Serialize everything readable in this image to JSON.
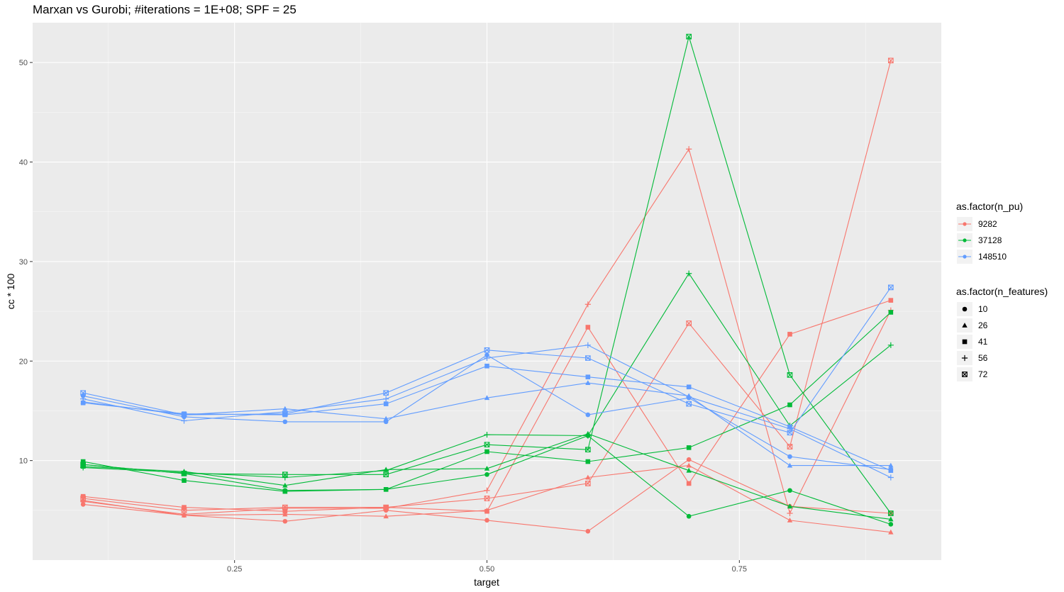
{
  "chart_data": {
    "type": "line",
    "title": "Marxan vs Gurobi; #iterations = 1E+08; SPF = 25",
    "xlabel": "target",
    "ylabel": "cc * 100",
    "xlim": [
      0.05,
      0.95
    ],
    "ylim": [
      0,
      54
    ],
    "x_ticks": [
      0.25,
      0.5,
      0.75
    ],
    "x_tick_labels": [
      "0.25",
      "0.50",
      "0.75"
    ],
    "y_ticks": [
      10,
      20,
      30,
      40,
      50
    ],
    "y_tick_labels": [
      "10",
      "20",
      "30",
      "40",
      "50"
    ],
    "grid": true,
    "legend_position": "right",
    "x": [
      0.1,
      0.2,
      0.3,
      0.4,
      0.5,
      0.6,
      0.7,
      0.8,
      0.9
    ],
    "color_legend": {
      "title": "as.factor(n_pu)",
      "entries": [
        {
          "label": "9282",
          "color": "#F8766D"
        },
        {
          "label": "37128",
          "color": "#00BA38"
        },
        {
          "label": "148510",
          "color": "#619CFF"
        }
      ]
    },
    "shape_legend": {
      "title": "as.factor(n_features)",
      "entries": [
        {
          "label": "10",
          "shape": "circle"
        },
        {
          "label": "26",
          "shape": "triangle"
        },
        {
          "label": "41",
          "shape": "square"
        },
        {
          "label": "56",
          "shape": "plus"
        },
        {
          "label": "72",
          "shape": "square-x"
        }
      ]
    },
    "series": [
      {
        "n_pu": "9282",
        "n_features": "10",
        "values": [
          5.6,
          4.5,
          3.9,
          5.0,
          4.0,
          2.9,
          10.1,
          5.4,
          4.7
        ]
      },
      {
        "n_pu": "9282",
        "n_features": "26",
        "values": [
          6.0,
          4.5,
          4.6,
          4.4,
          5.0,
          8.3,
          9.5,
          4.0,
          2.8
        ]
      },
      {
        "n_pu": "9282",
        "n_features": "41",
        "values": [
          6.4,
          5.3,
          4.9,
          5.3,
          4.9,
          23.4,
          7.7,
          22.7,
          26.1
        ]
      },
      {
        "n_pu": "9282",
        "n_features": "56",
        "values": [
          5.9,
          4.6,
          5.2,
          5.2,
          7.0,
          25.7,
          41.3,
          4.7,
          25.1
        ]
      },
      {
        "n_pu": "9282",
        "n_features": "72",
        "values": [
          6.2,
          5.0,
          5.3,
          5.3,
          6.2,
          7.7,
          23.8,
          11.4,
          50.2
        ]
      },
      {
        "n_pu": "37128",
        "n_features": "10",
        "values": [
          9.6,
          8.7,
          7.0,
          7.1,
          8.6,
          12.5,
          4.4,
          7.0,
          3.6
        ]
      },
      {
        "n_pu": "37128",
        "n_features": "26",
        "values": [
          9.4,
          8.9,
          7.5,
          9.1,
          9.2,
          12.7,
          9.0,
          5.4,
          4.1
        ]
      },
      {
        "n_pu": "37128",
        "n_features": "41",
        "values": [
          9.9,
          8.0,
          6.9,
          7.1,
          10.9,
          9.9,
          11.3,
          15.6,
          24.9
        ]
      },
      {
        "n_pu": "37128",
        "n_features": "56",
        "values": [
          9.3,
          8.8,
          8.3,
          9.0,
          12.6,
          12.5,
          28.8,
          13.5,
          21.6
        ]
      },
      {
        "n_pu": "37128",
        "n_features": "72",
        "values": [
          9.6,
          8.7,
          8.6,
          8.6,
          11.6,
          11.1,
          52.6,
          18.6,
          4.7
        ]
      },
      {
        "n_pu": "148510",
        "n_features": "10",
        "values": [
          16.5,
          14.4,
          13.9,
          13.9,
          20.6,
          14.6,
          16.3,
          10.4,
          9.1
        ]
      },
      {
        "n_pu": "148510",
        "n_features": "26",
        "values": [
          15.9,
          14.6,
          15.2,
          14.2,
          16.3,
          17.8,
          16.5,
          9.5,
          9.5
        ]
      },
      {
        "n_pu": "148510",
        "n_features": "41",
        "values": [
          15.8,
          14.7,
          14.6,
          15.7,
          19.5,
          18.4,
          17.4,
          13.4,
          9.0
        ]
      },
      {
        "n_pu": "148510",
        "n_features": "56",
        "values": [
          16.2,
          14.0,
          14.9,
          16.2,
          20.3,
          21.6,
          16.4,
          13.2,
          8.3
        ]
      },
      {
        "n_pu": "148510",
        "n_features": "72",
        "values": [
          16.8,
          14.6,
          14.7,
          16.8,
          21.1,
          20.3,
          15.7,
          12.8,
          27.4
        ]
      }
    ]
  }
}
